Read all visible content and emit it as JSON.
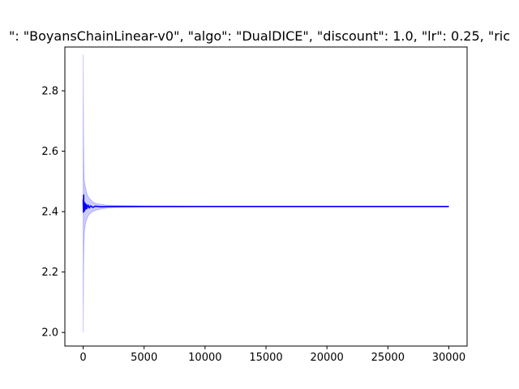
{
  "chart_data": {
    "type": "line",
    "title": "\": \"BoyansChainLinear-v0\", \"algo\": \"DualDICE\", \"discount\": 1.0, \"lr\": 0.25, \"ric",
    "xlabel": "",
    "ylabel": "",
    "xlim": [
      -1500,
      31500
    ],
    "ylim": [
      1.955,
      2.945
    ],
    "xticks": [
      0,
      5000,
      10000,
      15000,
      20000,
      25000,
      30000
    ],
    "yticks": [
      2.0,
      2.2,
      2.4,
      2.6,
      2.8
    ],
    "xtick_labels": [
      "0",
      "5000",
      "10000",
      "15000",
      "20000",
      "25000",
      "30000"
    ],
    "ytick_labels": [
      "2.0",
      "2.2",
      "2.4",
      "2.6",
      "2.8"
    ],
    "grid": false,
    "legend": "none",
    "series": [
      {
        "color": "#0000ff",
        "x": [
          0,
          20,
          40,
          60,
          80,
          100,
          150,
          200,
          250,
          300,
          400,
          500,
          600,
          800,
          1000,
          1500,
          2000,
          3000,
          5000,
          10000,
          15000,
          20000,
          25000,
          30000
        ],
        "y": [
          2.44,
          2.398,
          2.455,
          2.41,
          2.432,
          2.402,
          2.428,
          2.408,
          2.424,
          2.41,
          2.422,
          2.412,
          2.419,
          2.414,
          2.418,
          2.416,
          2.417,
          2.417,
          2.417,
          2.417,
          2.417,
          2.417,
          2.417,
          2.417
        ]
      }
    ],
    "band": {
      "color": "#0000ff",
      "opacity": 0.2,
      "x": [
        0,
        20,
        40,
        60,
        80,
        100,
        150,
        200,
        250,
        300,
        400,
        500,
        600,
        800,
        1000,
        1500,
        2000,
        3000,
        5000,
        10000,
        15000,
        20000,
        25000,
        30000
      ],
      "lower": [
        2.0,
        2.1,
        2.22,
        2.28,
        2.31,
        2.33,
        2.35,
        2.36,
        2.37,
        2.375,
        2.385,
        2.39,
        2.395,
        2.4,
        2.404,
        2.409,
        2.412,
        2.414,
        2.415,
        2.416,
        2.416,
        2.416,
        2.416,
        2.416
      ],
      "upper": [
        2.92,
        2.76,
        2.62,
        2.55,
        2.52,
        2.5,
        2.49,
        2.48,
        2.47,
        2.46,
        2.45,
        2.445,
        2.44,
        2.432,
        2.428,
        2.424,
        2.421,
        2.42,
        2.419,
        2.418,
        2.418,
        2.418,
        2.418,
        2.418
      ]
    }
  }
}
